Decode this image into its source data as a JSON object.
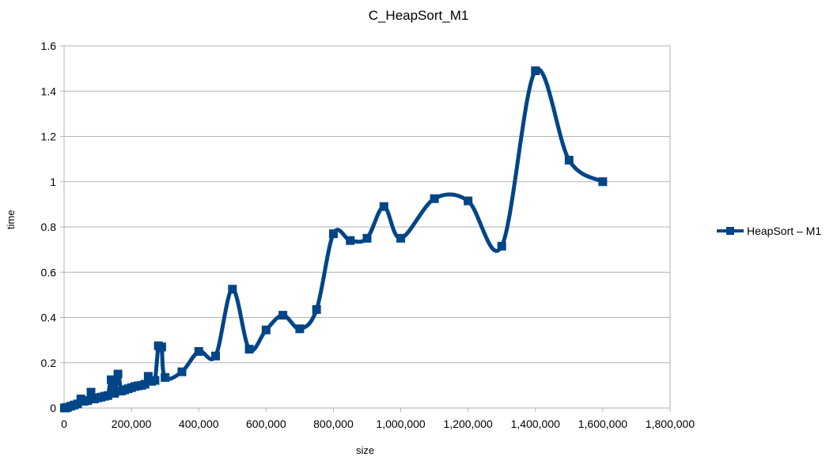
{
  "chart_data": {
    "type": "line",
    "title": "C_HeapSort_M1",
    "xlabel": "size",
    "ylabel": "time",
    "xlim": [
      0,
      1800000
    ],
    "ylim": [
      0,
      1.6
    ],
    "x_ticks": [
      "0",
      "200,000",
      "400,000",
      "600,000",
      "800,000",
      "1,000,000",
      "1,200,000",
      "1,400,000",
      "1,600,000",
      "1,800,000"
    ],
    "y_ticks": [
      "0",
      "0.2",
      "0.4",
      "0.6",
      "0.8",
      "1",
      "1.2",
      "1.4",
      "1.6"
    ],
    "grid": "horizontal",
    "legend_position": "right",
    "series": [
      {
        "name": "HeapSort – M1",
        "color": "#004586",
        "marker": "square",
        "smooth": true,
        "x": [
          1000,
          5000,
          10000,
          20000,
          30000,
          40000,
          50000,
          60000,
          70000,
          80000,
          90000,
          100000,
          110000,
          120000,
          130000,
          140000,
          150000,
          160000,
          170000,
          180000,
          190000,
          200000,
          210000,
          220000,
          230000,
          240000,
          250000,
          260000,
          270000,
          280000,
          285000,
          290000,
          300000,
          350000,
          400000,
          450000,
          500000,
          550000,
          600000,
          650000,
          700000,
          750000,
          800000,
          850000,
          900000,
          950000,
          1000000,
          1100000,
          1200000,
          1300000,
          1400000,
          1500000,
          1600000
        ],
        "y": [
          0.0,
          0.001,
          0.003,
          0.008,
          0.013,
          0.018,
          0.04,
          0.03,
          0.033,
          0.07,
          0.04,
          0.045,
          0.048,
          0.052,
          0.055,
          0.125,
          0.065,
          0.15,
          0.075,
          0.08,
          0.085,
          0.09,
          0.095,
          0.098,
          0.1,
          0.105,
          0.14,
          0.118,
          0.122,
          0.275,
          0.265,
          0.27,
          0.135,
          0.16,
          0.25,
          0.23,
          0.525,
          0.26,
          0.345,
          0.41,
          0.35,
          0.435,
          0.77,
          0.74,
          0.75,
          0.89,
          0.75,
          0.925,
          0.915,
          0.715,
          1.49,
          1.095,
          1.0
        ]
      }
    ]
  },
  "legend": {
    "label": "HeapSort – M1"
  }
}
